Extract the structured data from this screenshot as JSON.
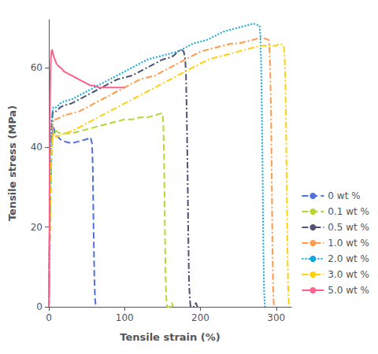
{
  "chart_data": {
    "type": "line",
    "xlabel": "Tensile strain (%)",
    "ylabel": "Tensile stress (MPa)",
    "xlim": [
      0,
      320
    ],
    "ylim": [
      0,
      72
    ],
    "xticks": [
      0,
      100,
      200,
      300
    ],
    "yticks": [
      0,
      20,
      40,
      60
    ],
    "grid": false,
    "legend": "lower right",
    "series": [
      {
        "name": "0 wt %",
        "line_style": "dashed",
        "x": [
          0,
          1,
          2,
          3,
          4,
          5,
          6,
          7,
          8,
          10,
          15,
          20,
          30,
          40,
          50,
          55,
          57,
          58,
          59,
          60,
          61,
          62
        ],
        "values": [
          0,
          10,
          25,
          35,
          41,
          44,
          45,
          44.5,
          43.5,
          43,
          42,
          41.5,
          41,
          41.5,
          42,
          42.5,
          41,
          35,
          20,
          8,
          2,
          0
        ]
      },
      {
        "name": "0.1 wt %",
        "line_style": "dashed",
        "x": [
          0,
          1,
          2,
          3,
          4,
          5,
          6,
          7,
          8,
          10,
          15,
          20,
          30,
          40,
          50,
          60,
          70,
          80,
          90,
          100,
          110,
          120,
          130,
          140,
          148,
          150,
          151,
          152,
          153,
          154,
          155,
          156,
          160,
          161,
          162,
          163,
          164
        ],
        "values": [
          0,
          15,
          28,
          36,
          41,
          43,
          44,
          44.5,
          44.5,
          44,
          43.5,
          43.5,
          43.5,
          44,
          44.5,
          45,
          45.5,
          46,
          46.5,
          47,
          47,
          47.5,
          47.5,
          48,
          48.5,
          48.5,
          46,
          38,
          22,
          8,
          2,
          0,
          0,
          0.5,
          1,
          0.5,
          0
        ]
      },
      {
        "name": "0.5 wt %",
        "line_style": "dashdot",
        "x": [
          0,
          1,
          2,
          3,
          4,
          5,
          6,
          7,
          8,
          10,
          15,
          20,
          30,
          40,
          50,
          60,
          70,
          80,
          90,
          100,
          110,
          120,
          130,
          140,
          150,
          160,
          165,
          170,
          175,
          178,
          179,
          180,
          181,
          182,
          183,
          184,
          185,
          186,
          187,
          192,
          193,
          194,
          195,
          196
        ],
        "values": [
          0,
          18,
          32,
          41,
          46,
          48.5,
          49,
          49,
          49,
          49,
          50,
          50.5,
          51,
          52,
          53,
          54,
          55,
          56,
          57,
          57.5,
          58,
          59,
          60,
          61,
          62,
          62.5,
          63,
          64,
          64.5,
          64,
          63,
          62,
          58,
          48,
          35,
          18,
          6,
          2,
          0,
          0,
          0.5,
          1,
          0.5,
          0
        ]
      },
      {
        "name": "1.0 wt %",
        "line_style": "dashdot",
        "x": [
          0,
          1,
          2,
          3,
          4,
          5,
          6,
          7,
          8,
          10,
          15,
          20,
          30,
          40,
          50,
          60,
          70,
          80,
          90,
          100,
          110,
          120,
          130,
          140,
          150,
          160,
          170,
          180,
          190,
          200,
          210,
          220,
          230,
          240,
          250,
          260,
          270,
          280,
          290,
          291,
          292,
          293,
          294,
          295,
          296,
          297
        ],
        "values": [
          0,
          15,
          30,
          39,
          43,
          45.5,
          47,
          47,
          47,
          47,
          47.5,
          48,
          48.5,
          49,
          50,
          51,
          52,
          53,
          54,
          55,
          56,
          57,
          57.5,
          58,
          59,
          60,
          61,
          62,
          63,
          64,
          64.5,
          65,
          65.5,
          66,
          66,
          66.5,
          67,
          67.5,
          67,
          65,
          60,
          50,
          35,
          15,
          4,
          0
        ]
      },
      {
        "name": "2.0 wt %",
        "line_style": "dotted",
        "x": [
          0,
          1,
          2,
          3,
          4,
          5,
          6,
          7,
          8,
          10,
          15,
          20,
          30,
          40,
          50,
          60,
          70,
          80,
          90,
          100,
          110,
          120,
          130,
          140,
          150,
          160,
          170,
          180,
          190,
          200,
          210,
          220,
          230,
          240,
          250,
          260,
          270,
          278,
          279,
          280,
          281,
          282,
          283,
          284,
          285
        ],
        "values": [
          0,
          20,
          35,
          43,
          47,
          49,
          50,
          50,
          50,
          50,
          51,
          51.5,
          52,
          53,
          54,
          55,
          56,
          57,
          58,
          59,
          60,
          61,
          62,
          62.5,
          63,
          63.5,
          64,
          65,
          66,
          66.5,
          67,
          68,
          69,
          69.5,
          70,
          70.5,
          71,
          70.5,
          68,
          62,
          50,
          35,
          15,
          4,
          0
        ]
      },
      {
        "name": "3.0 wt %",
        "line_style": "dashdot",
        "x": [
          0,
          1,
          2,
          3,
          4,
          5,
          6,
          7,
          8,
          10,
          15,
          20,
          30,
          40,
          50,
          60,
          70,
          80,
          90,
          100,
          110,
          120,
          130,
          140,
          150,
          160,
          170,
          180,
          190,
          200,
          210,
          220,
          230,
          240,
          250,
          260,
          270,
          280,
          290,
          300,
          305,
          310,
          311,
          312,
          313,
          314,
          315,
          316,
          317
        ],
        "values": [
          0,
          14,
          27,
          36,
          40,
          42,
          43,
          43.5,
          43,
          42.5,
          43,
          43.5,
          44,
          45,
          46,
          47,
          48,
          49,
          50,
          51,
          52,
          53,
          54,
          55,
          56,
          57,
          58,
          59,
          60,
          61,
          62,
          62.5,
          63,
          63.5,
          64,
          64.5,
          65,
          65.5,
          65.5,
          65.5,
          66,
          65.5,
          63,
          57,
          45,
          28,
          12,
          3,
          0
        ]
      },
      {
        "name": "5.0 wt %",
        "line_style": "solid",
        "x": [
          0,
          0.2,
          0.5,
          0.8,
          1,
          1.3,
          1.6,
          2,
          2.5,
          3,
          3.5,
          4,
          4.5,
          5,
          6,
          7,
          8,
          9,
          10,
          12,
          15,
          18,
          20,
          25,
          30,
          35,
          40,
          45,
          50,
          55,
          60,
          65,
          70,
          75,
          80,
          85,
          90,
          95,
          100
        ],
        "values": [
          0,
          3,
          10,
          20,
          32,
          43,
          51,
          57,
          61,
          63,
          64,
          64.5,
          64.5,
          64,
          63,
          62.5,
          62,
          61.5,
          61,
          60.5,
          60,
          59.5,
          59,
          58.5,
          58,
          57.5,
          57,
          56.5,
          56,
          55.5,
          55.5,
          55,
          55,
          55,
          55,
          55,
          55,
          55,
          55
        ]
      }
    ]
  }
}
